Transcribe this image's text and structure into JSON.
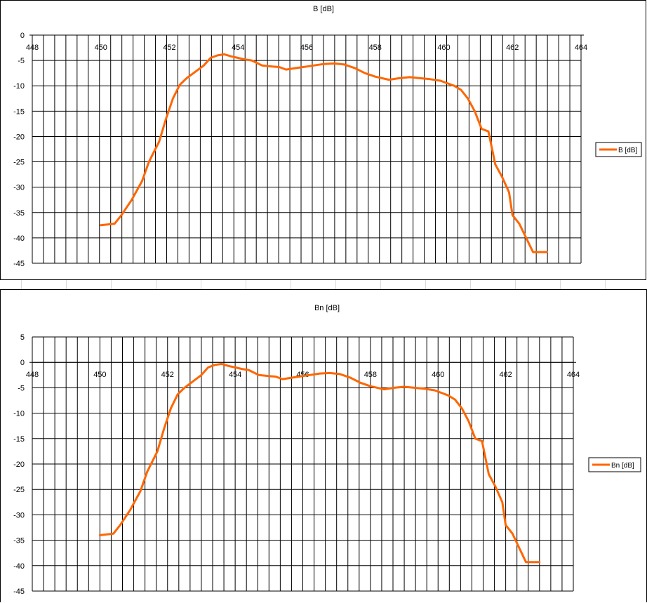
{
  "chart_data": [
    {
      "type": "line",
      "title": "B [dB]",
      "xlabel": "",
      "ylabel": "",
      "xlim": [
        448,
        464
      ],
      "ylim": [
        -45,
        0
      ],
      "x_ticks": [
        448,
        450,
        452,
        454,
        456,
        458,
        460,
        462,
        464
      ],
      "y_ticks": [
        0,
        -5,
        -10,
        -15,
        -20,
        -25,
        -30,
        -35,
        -40,
        -45
      ],
      "grid": true,
      "legend": "right",
      "series": [
        {
          "name": "B [dB]",
          "color": "#ff6600",
          "x": [
            450.0,
            450.4,
            450.6,
            450.9,
            451.2,
            451.4,
            451.7,
            451.9,
            452.1,
            452.3,
            452.5,
            452.7,
            453.0,
            453.2,
            453.4,
            453.6,
            453.8,
            454.0,
            454.2,
            454.4,
            454.7,
            455.0,
            455.2,
            455.4,
            455.7,
            456.0,
            456.2,
            456.5,
            456.8,
            457.1,
            457.4,
            457.7,
            458.0,
            458.4,
            458.7,
            459.0,
            459.3,
            459.6,
            459.9,
            460.1,
            460.3,
            460.5,
            460.7,
            460.9,
            461.1,
            461.3,
            461.5,
            461.7,
            461.9,
            462.0,
            462.2,
            462.4,
            462.6,
            462.8,
            463.0
          ],
          "values": [
            -37.5,
            -37.2,
            -35.5,
            -32.5,
            -28.8,
            -25.0,
            -21.0,
            -16.5,
            -12.5,
            -9.8,
            -8.5,
            -7.5,
            -6.0,
            -4.5,
            -4.0,
            -3.8,
            -4.2,
            -4.5,
            -4.8,
            -5.0,
            -6.0,
            -6.2,
            -6.3,
            -6.8,
            -6.5,
            -6.2,
            -6.0,
            -5.7,
            -5.6,
            -5.8,
            -6.5,
            -7.5,
            -8.2,
            -8.8,
            -8.5,
            -8.3,
            -8.5,
            -8.7,
            -9.0,
            -9.5,
            -10.0,
            -10.8,
            -12.5,
            -15.0,
            -18.5,
            -19.0,
            -25.5,
            -28.0,
            -31.0,
            -35.5,
            -37.2,
            -40.0,
            -42.8,
            -42.8,
            -42.8
          ]
        }
      ]
    },
    {
      "type": "line",
      "title": "Bn [dB]",
      "xlabel": "",
      "ylabel": "",
      "xlim": [
        448,
        464
      ],
      "ylim": [
        -45,
        5
      ],
      "x_ticks": [
        448,
        450,
        452,
        454,
        456,
        458,
        460,
        462,
        464
      ],
      "y_ticks": [
        5,
        0,
        -5,
        -10,
        -15,
        -20,
        -25,
        -30,
        -35,
        -40,
        -45
      ],
      "grid": true,
      "legend": "right",
      "series": [
        {
          "name": "Bn [dB]",
          "color": "#ff6600",
          "x": [
            450.0,
            450.4,
            450.6,
            450.9,
            451.2,
            451.4,
            451.7,
            451.9,
            452.1,
            452.3,
            452.5,
            452.7,
            453.0,
            453.2,
            453.4,
            453.6,
            453.8,
            454.0,
            454.2,
            454.4,
            454.7,
            455.0,
            455.2,
            455.4,
            455.7,
            456.0,
            456.2,
            456.5,
            456.8,
            457.1,
            457.4,
            457.7,
            458.0,
            458.4,
            458.7,
            459.0,
            459.3,
            459.6,
            459.9,
            460.1,
            460.3,
            460.5,
            460.7,
            460.9,
            461.1,
            461.3,
            461.5,
            461.7,
            461.9,
            462.0,
            462.2,
            462.4,
            462.6,
            462.8,
            463.0
          ],
          "values": [
            -34.0,
            -33.7,
            -32.0,
            -29.0,
            -25.3,
            -21.5,
            -17.5,
            -13.0,
            -9.0,
            -6.3,
            -5.0,
            -4.0,
            -2.5,
            -1.0,
            -0.5,
            -0.3,
            -0.7,
            -1.0,
            -1.3,
            -1.5,
            -2.5,
            -2.7,
            -2.8,
            -3.3,
            -3.0,
            -2.7,
            -2.5,
            -2.2,
            -2.1,
            -2.3,
            -3.0,
            -4.0,
            -4.7,
            -5.3,
            -5.0,
            -4.8,
            -5.0,
            -5.2,
            -5.5,
            -6.0,
            -6.5,
            -7.3,
            -9.0,
            -11.5,
            -15.0,
            -15.5,
            -22.0,
            -24.5,
            -27.5,
            -32.0,
            -33.7,
            -36.5,
            -39.3,
            -39.3,
            -39.3
          ]
        }
      ]
    }
  ]
}
